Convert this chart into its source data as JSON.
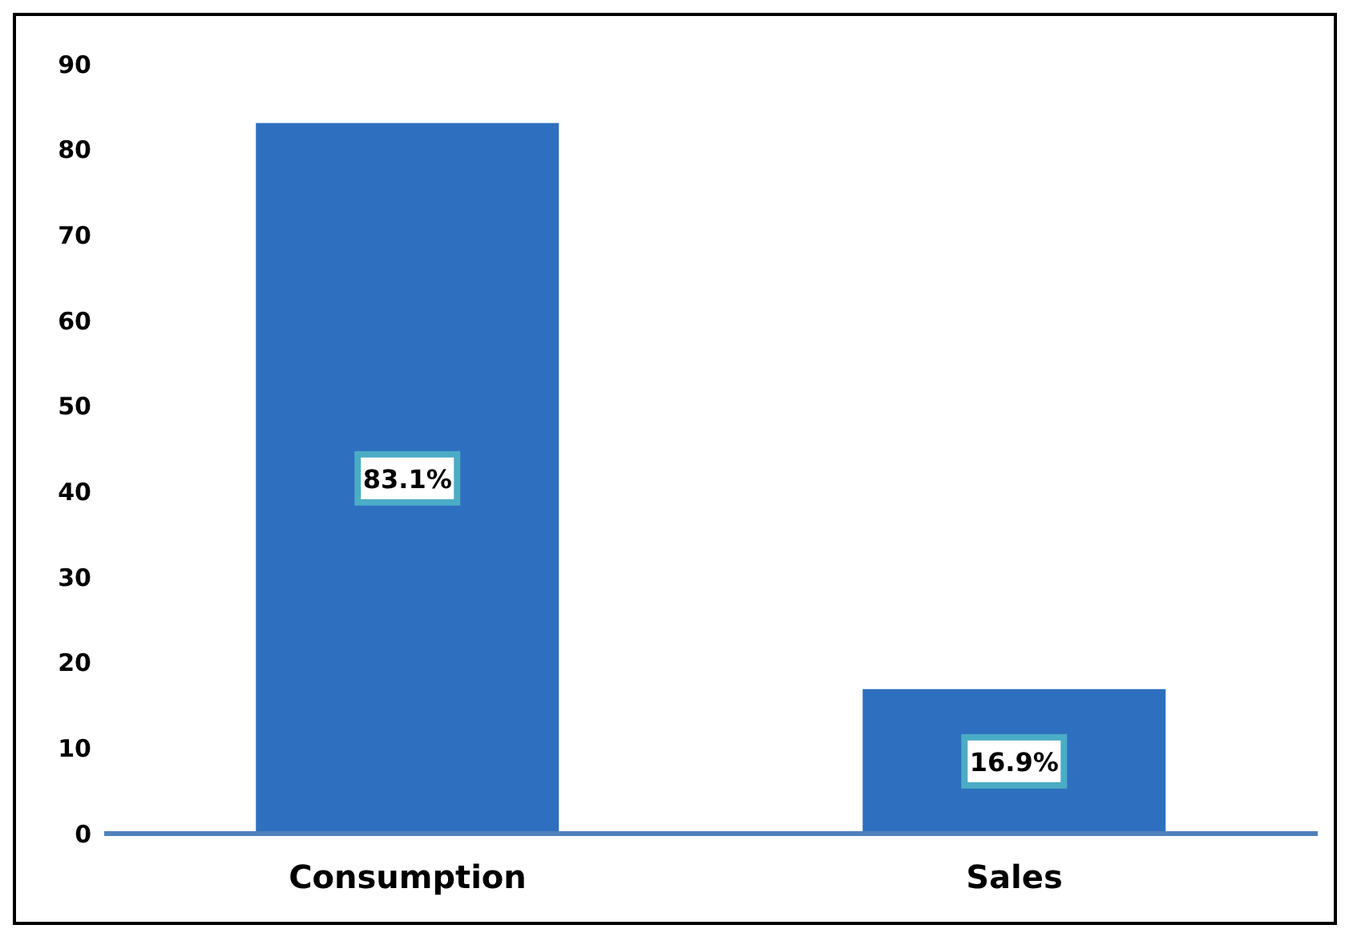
{
  "chart_data": {
    "type": "bar",
    "categories": [
      "Consumption",
      "Sales"
    ],
    "values": [
      83.1,
      16.9
    ],
    "value_labels": [
      "83.1%",
      "16.9%"
    ],
    "color": "#2e6fbf",
    "ylim": [
      0,
      90
    ],
    "yticks": [
      0,
      10,
      20,
      30,
      40,
      50,
      60,
      70,
      80,
      90
    ],
    "grid": false,
    "legend": false
  }
}
